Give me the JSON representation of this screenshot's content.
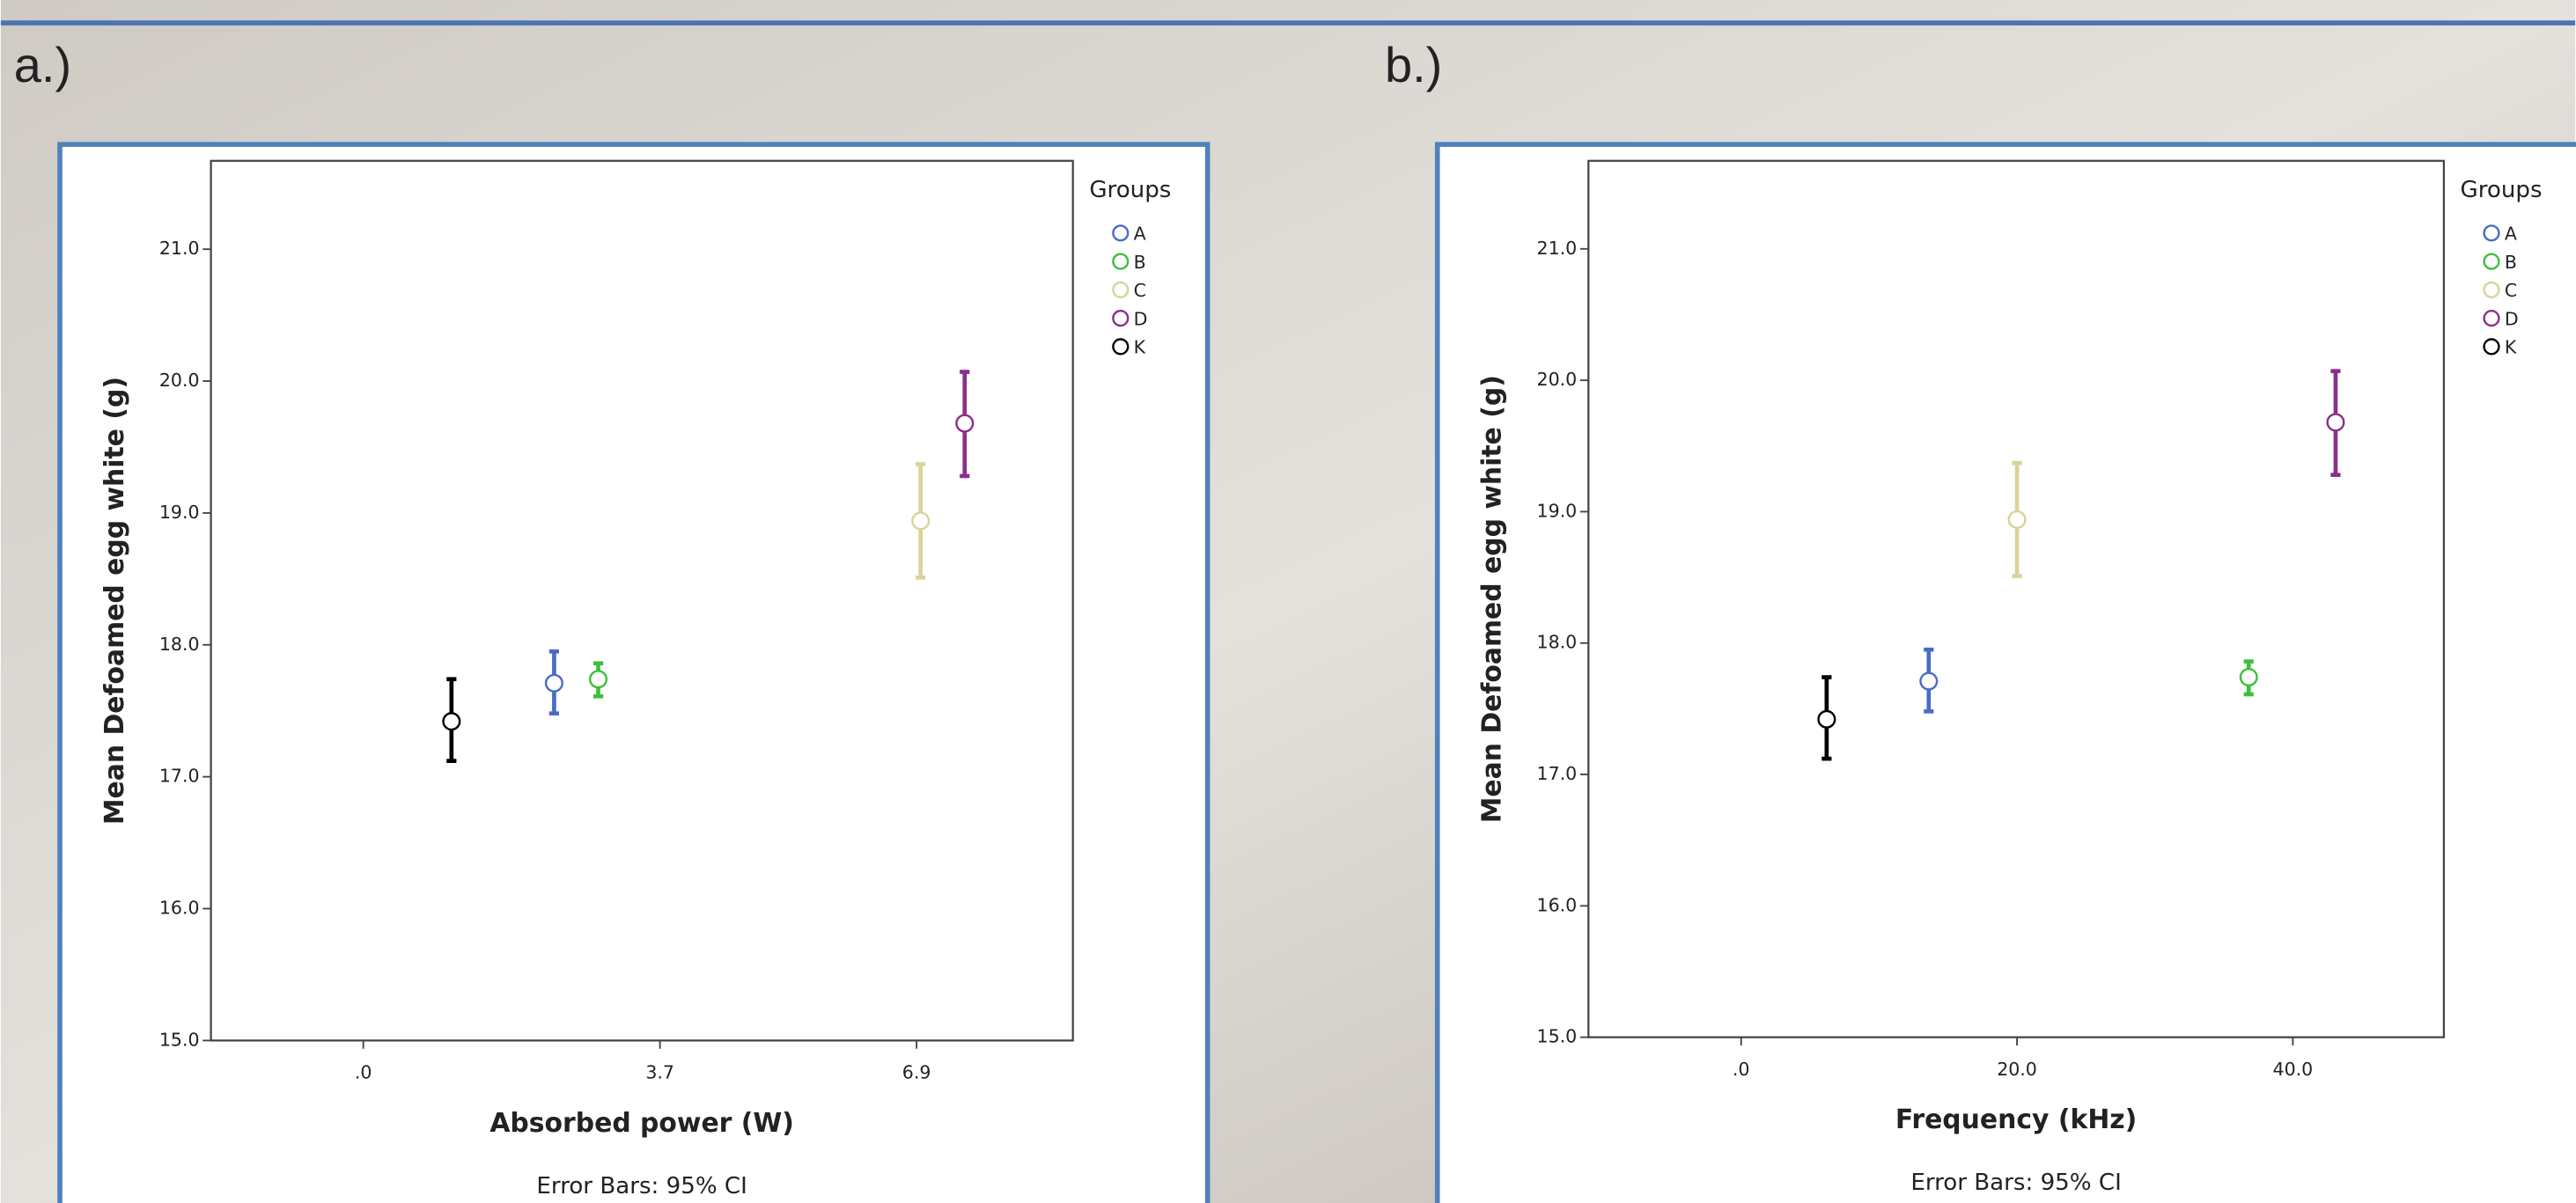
{
  "chart_data": [
    {
      "type": "errorbar",
      "panel_label": "a.)",
      "x_label": "Absorbed power (W)",
      "y_label": "Mean Defoamed egg white (g)",
      "legend_title": "Groups",
      "note": "Error Bars: 95% CI",
      "xlim": [
        -1.9,
        8.85
      ],
      "xticks": [
        {
          "value": 0,
          "label": ".0"
        },
        3.7,
        6.9
      ],
      "ylim": [
        15.0,
        21.67
      ],
      "yticks": [
        {
          "value": 15,
          "label": "15.0"
        },
        {
          "value": 16,
          "label": "16.0"
        },
        {
          "value": 17,
          "label": "17.0"
        },
        {
          "value": 18,
          "label": "18.0"
        },
        {
          "value": 19,
          "label": "19.0"
        },
        {
          "value": 20,
          "label": "20.0"
        },
        {
          "value": 21,
          "label": "21.0"
        }
      ],
      "series": [
        {
          "name": "A",
          "color": "#4a6cc4",
          "x": [
            2.38
          ],
          "values": [
            17.71
          ],
          "ci_low": [
            17.48
          ],
          "ci_high": [
            17.95
          ]
        },
        {
          "name": "B",
          "color": "#3dbf3d",
          "x": [
            2.93
          ],
          "values": [
            17.74
          ],
          "ci_low": [
            17.61
          ],
          "ci_high": [
            17.86
          ]
        },
        {
          "name": "C",
          "color": "#d8d49a",
          "x": [
            6.95
          ],
          "values": [
            18.94
          ],
          "ci_low": [
            18.51
          ],
          "ci_high": [
            19.37
          ]
        },
        {
          "name": "D",
          "color": "#8b2f8b",
          "x": [
            7.5
          ],
          "values": [
            19.68
          ],
          "ci_low": [
            19.28
          ],
          "ci_high": [
            20.07
          ]
        },
        {
          "name": "K",
          "color": "#000000",
          "x": [
            1.1
          ],
          "values": [
            17.42
          ],
          "ci_low": [
            17.12
          ],
          "ci_high": [
            17.74
          ]
        }
      ]
    },
    {
      "type": "errorbar",
      "panel_label": "b.)",
      "x_label": "Frequency (kHz)",
      "y_label": "Mean Defoamed egg white (g)",
      "legend_title": "Groups",
      "note": "Error Bars: 95% CI",
      "xlim": [
        -11.07,
        50.95
      ],
      "xticks": [
        {
          "value": 0,
          "label": ".0"
        },
        {
          "value": 20,
          "label": "20.0"
        },
        {
          "value": 40,
          "label": "40.0"
        }
      ],
      "ylim": [
        15.0,
        21.67
      ],
      "yticks": [
        {
          "value": 15,
          "label": "15.0"
        },
        {
          "value": 16,
          "label": "16.0"
        },
        {
          "value": 17,
          "label": "17.0"
        },
        {
          "value": 18,
          "label": "18.0"
        },
        {
          "value": 19,
          "label": "19.0"
        },
        {
          "value": 20,
          "label": "20.0"
        },
        {
          "value": 21,
          "label": "21.0"
        }
      ],
      "series": [
        {
          "name": "A",
          "color": "#4a6cc4",
          "x": [
            13.6
          ],
          "values": [
            17.71
          ],
          "ci_low": [
            17.48
          ],
          "ci_high": [
            17.95
          ]
        },
        {
          "name": "B",
          "color": "#3dbf3d",
          "x": [
            36.8
          ],
          "values": [
            17.74
          ],
          "ci_low": [
            17.61
          ],
          "ci_high": [
            17.86
          ]
        },
        {
          "name": "C",
          "color": "#d8d49a",
          "x": [
            20.0
          ],
          "values": [
            18.94
          ],
          "ci_low": [
            18.51
          ],
          "ci_high": [
            19.37
          ]
        },
        {
          "name": "D",
          "color": "#8b2f8b",
          "x": [
            43.1
          ],
          "values": [
            19.68
          ],
          "ci_low": [
            19.28
          ],
          "ci_high": [
            20.07
          ]
        },
        {
          "name": "K",
          "color": "#000000",
          "x": [
            6.2
          ],
          "values": [
            17.42
          ],
          "ci_low": [
            17.12
          ],
          "ci_high": [
            17.74
          ]
        }
      ]
    }
  ]
}
